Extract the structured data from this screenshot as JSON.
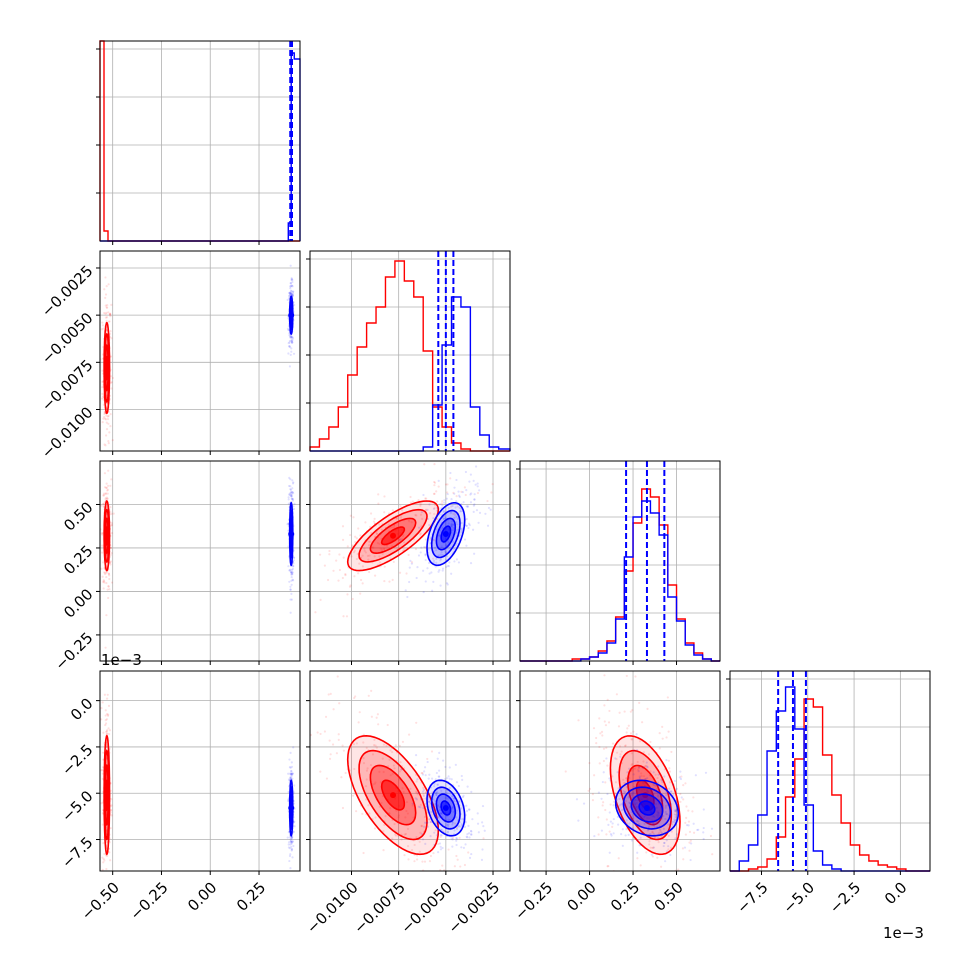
{
  "figure": {
    "series_colors": {
      "red": "#ff0000",
      "blue": "#0000ff"
    },
    "offset_labels": {
      "row4_y": "1e−3",
      "col4_x": "1e−3"
    }
  },
  "chart_data": {
    "type": "corner",
    "parameters": 4,
    "axes": [
      {
        "ticks": [
          -0.5,
          -0.25,
          0.0,
          0.25
        ],
        "tick_labels": [
          "−0.50",
          "−0.25",
          "0.00",
          "0.25"
        ],
        "range": [
          -0.565,
          0.46
        ]
      },
      {
        "ticks": [
          -0.01,
          -0.0075,
          -0.005,
          -0.0025
        ],
        "tick_labels": [
          "−0.0100",
          "−0.0075",
          "−0.0050",
          "−0.0025"
        ],
        "range": [
          -0.0122,
          -0.0016
        ]
      },
      {
        "ticks": [
          -0.25,
          0.0,
          0.25,
          0.5
        ],
        "tick_labels": [
          "−0.25",
          "0.00",
          "0.25",
          "0.50"
        ],
        "range": [
          -0.4,
          0.75
        ]
      },
      {
        "ticks": [
          -7.5,
          -5.0,
          -2.5,
          0.0
        ],
        "tick_labels": [
          "−7.5",
          "−5.0",
          "−2.5",
          "0.0"
        ],
        "range": [
          -9.2,
          1.6
        ]
      }
    ],
    "series": [
      {
        "color": "#ff0000",
        "mean": [
          -0.53,
          -0.0078,
          0.32,
          -5.1
        ],
        "std": [
          0.007,
          0.0012,
          0.1,
          1.6
        ]
      },
      {
        "color": "#0000ff",
        "mean": [
          0.415,
          -0.005,
          0.33,
          -5.8
        ],
        "std": [
          0.004,
          0.0005,
          0.09,
          0.75
        ]
      }
    ],
    "histograms": [
      {
        "bins": [
          -0.565,
          -0.5445,
          -0.524,
          0.4,
          0.415,
          0.4305,
          0.46
        ],
        "red": [
          1.0,
          0.05,
          0,
          0,
          0,
          0
        ],
        "blue": [
          0,
          0,
          0,
          0.09,
          0.94,
          0.91
        ]
      },
      {
        "bins": [
          -0.0122,
          -0.0117,
          -0.0112,
          -0.0107,
          -0.0102,
          -0.0097,
          -0.0092,
          -0.0087,
          -0.0082,
          -0.0077,
          -0.0072,
          -0.0067,
          -0.0062,
          -0.0057,
          -0.0052,
          -0.0047,
          -0.0042,
          -0.0037,
          -0.0032,
          -0.0027,
          -0.0022,
          -0.0016
        ],
        "red": [
          0.02,
          0.06,
          0.12,
          0.22,
          0.38,
          0.52,
          0.64,
          0.72,
          0.87,
          0.95,
          0.85,
          0.77,
          0.5,
          0.22,
          0.12,
          0.04,
          0.01,
          0,
          0,
          0,
          0
        ],
        "blue": [
          0,
          0,
          0,
          0,
          0,
          0,
          0,
          0,
          0,
          0,
          0,
          0,
          0.02,
          0.23,
          0.53,
          0.77,
          0.72,
          0.22,
          0.08,
          0.02,
          0.01
        ]
      },
      {
        "bins": [
          -0.4,
          -0.35,
          -0.3,
          -0.25,
          -0.2,
          -0.15,
          -0.1,
          -0.05,
          0.0,
          0.05,
          0.1,
          0.15,
          0.2,
          0.25,
          0.3,
          0.35,
          0.4,
          0.45,
          0.5,
          0.55,
          0.6,
          0.65,
          0.7,
          0.75
        ],
        "red": [
          0,
          0,
          0,
          0,
          0,
          0,
          0.01,
          0.01,
          0.02,
          0.05,
          0.1,
          0.22,
          0.45,
          0.69,
          0.86,
          0.82,
          0.68,
          0.38,
          0.21,
          0.09,
          0.04,
          0.01,
          0
        ],
        "blue": [
          0,
          0,
          0,
          0,
          0,
          0,
          0,
          0.01,
          0.02,
          0.04,
          0.09,
          0.21,
          0.52,
          0.72,
          0.8,
          0.74,
          0.63,
          0.32,
          0.2,
          0.08,
          0.03,
          0.01,
          0
        ]
      },
      {
        "bins": [
          -9.2,
          -8.7,
          -8.2,
          -7.7,
          -7.2,
          -6.7,
          -6.2,
          -5.7,
          -5.2,
          -4.7,
          -4.2,
          -3.7,
          -3.2,
          -2.7,
          -2.2,
          -1.7,
          -1.2,
          -0.7,
          -0.2,
          0.3,
          0.8,
          1.6
        ],
        "red": [
          0,
          0,
          0.01,
          0.02,
          0.06,
          0.17,
          0.37,
          0.56,
          0.86,
          0.82,
          0.58,
          0.38,
          0.24,
          0.13,
          0.08,
          0.05,
          0.03,
          0.02,
          0.01,
          0,
          0
        ],
        "blue": [
          0,
          0.05,
          0.13,
          0.28,
          0.6,
          0.8,
          0.92,
          0.71,
          0.33,
          0.1,
          0.03,
          0.01,
          0,
          0,
          0,
          0,
          0,
          0,
          0,
          0,
          0
        ]
      }
    ],
    "quantile_lines": [
      [
        0.41,
        0.413,
        0.416,
        0.419
      ],
      [
        -0.0054,
        -0.005,
        -0.0046
      ],
      [
        0.21,
        0.33,
        0.43
      ],
      [
        -6.6,
        -5.8,
        -5.1
      ]
    ],
    "grid": true
  }
}
